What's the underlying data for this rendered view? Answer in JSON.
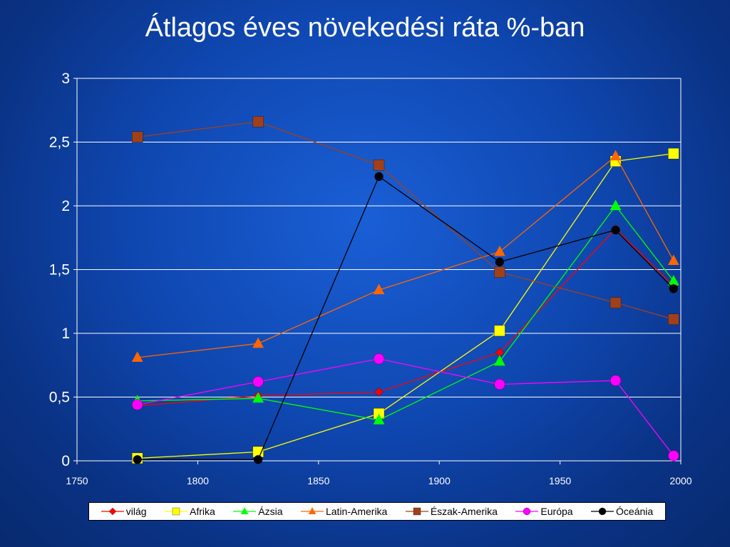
{
  "title": "Átlagos éves növekedési ráta %-ban",
  "chart_data": {
    "type": "line",
    "title": "Átlagos éves növekedési ráta %-ban",
    "xlabel": "",
    "ylabel": "",
    "xlim": [
      1750,
      2000
    ],
    "ylim": [
      0,
      3
    ],
    "x_ticks": [
      "1750",
      "1800",
      "1850",
      "1900",
      "1950",
      "2000"
    ],
    "y_ticks": [
      "0",
      "0,5",
      "1",
      "1,5",
      "2",
      "2,5",
      "3"
    ],
    "grid": "horizontal",
    "legend_position": "bottom",
    "series": [
      {
        "name": "világ",
        "color": "#ff0000",
        "marker": "diamond",
        "marker_color": "#ff0000",
        "x": [
          1775,
          1825,
          1875,
          1925,
          1973,
          1997
        ],
        "y": [
          0.43,
          0.51,
          0.54,
          0.85,
          1.82,
          1.37
        ]
      },
      {
        "name": "Afrika",
        "color": "#ffff00",
        "marker": "square",
        "marker_color": "#ffff00",
        "x": [
          1775,
          1825,
          1875,
          1925,
          1973,
          1997
        ],
        "y": [
          0.02,
          0.07,
          0.37,
          1.02,
          2.35,
          2.41
        ]
      },
      {
        "name": "Ázsia",
        "color": "#00ff00",
        "marker": "triangle",
        "marker_color": "#00ff00",
        "x": [
          1775,
          1825,
          1875,
          1925,
          1973,
          1997
        ],
        "y": [
          0.47,
          0.49,
          0.32,
          0.78,
          2.0,
          1.41
        ]
      },
      {
        "name": "Latin-Amerika",
        "color": "#ff6600",
        "marker": "triangle",
        "marker_color": "#ff6600",
        "x": [
          1775,
          1825,
          1875,
          1925,
          1973,
          1997
        ],
        "y": [
          0.81,
          0.92,
          1.34,
          1.64,
          2.39,
          1.57
        ]
      },
      {
        "name": "Észak-Amerika",
        "color": "#a0401a",
        "marker": "square",
        "marker_color": "#a0401a",
        "x": [
          1775,
          1825,
          1875,
          1925,
          1973,
          1997
        ],
        "y": [
          2.54,
          2.66,
          2.32,
          1.48,
          1.24,
          1.11
        ]
      },
      {
        "name": "Európa",
        "color": "#ff00ff",
        "marker": "circle",
        "marker_color": "#ff00ff",
        "x": [
          1775,
          1825,
          1875,
          1925,
          1973,
          1997
        ],
        "y": [
          0.44,
          0.62,
          0.8,
          0.6,
          0.63,
          0.04
        ]
      },
      {
        "name": "Óceánia",
        "color": "#000000",
        "marker": "circle",
        "marker_color": "#000000",
        "x": [
          1775,
          1825,
          1875,
          1925,
          1973,
          1997
        ],
        "y": [
          0.01,
          0.01,
          2.23,
          1.56,
          1.81,
          1.35
        ]
      }
    ]
  }
}
